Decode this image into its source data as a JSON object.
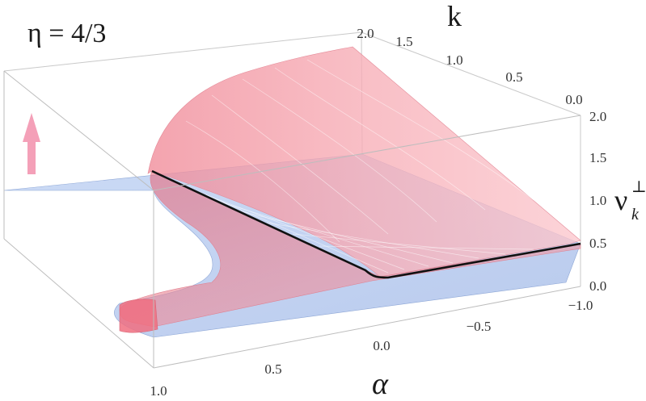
{
  "chart_data": {
    "type": "surface3d",
    "title": "η = 4/3",
    "axes": {
      "alpha": {
        "label": "α",
        "range": [
          -1.0,
          1.0
        ],
        "ticks": [
          "1.0",
          "0.5",
          "0.0",
          "−0.5",
          "−1.0"
        ],
        "tick_values": [
          1.0,
          0.5,
          0.0,
          -0.5,
          -1.0
        ]
      },
      "k": {
        "label": "k",
        "range": [
          0.0,
          2.0
        ],
        "ticks": [
          "2.0",
          "1.5",
          "1.0",
          "0.5",
          "0.0"
        ],
        "tick_values": [
          2.0,
          1.5,
          1.0,
          0.5,
          0.0
        ]
      },
      "nu": {
        "label_main": "ν",
        "label_sub": "k",
        "label_sup": "⊥",
        "range": [
          0.0,
          2.0
        ],
        "ticks": [
          "2.0",
          "1.5",
          "1.0",
          "0.5",
          "0.0"
        ],
        "tick_values": [
          2.0,
          1.5,
          1.0,
          0.5,
          0.0
        ]
      }
    },
    "surfaces": [
      {
        "name": "",
        "color": "#a9c3ee",
        "description_values": {
          "nu_constant": 1.0
        }
      },
      {
        "name": "",
        "color": "#f59aa6"
      }
    ],
    "critical_curve": {
      "color": "#000000",
      "k": 0.0,
      "alpha_range": [
        -1.0,
        0.0
      ]
    },
    "arrow": {
      "color": "#f4a0b8",
      "direction": "up"
    },
    "colors": {
      "blue": "#a9c3ee",
      "pink": "#f59aa6",
      "box": "#c8c8c8",
      "curve": "#111111"
    }
  }
}
